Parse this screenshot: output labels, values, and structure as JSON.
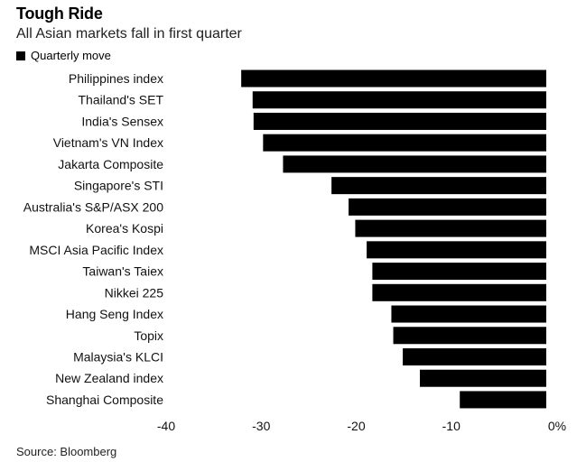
{
  "chart_data": {
    "type": "bar",
    "orientation": "horizontal",
    "title": "Tough Ride",
    "subtitle": "All Asian markets fall in first quarter",
    "legend": "Quarterly move",
    "source": "Source: Bloomberg",
    "categories": [
      "Philippines index",
      "Thailand's SET",
      "India's Sensex",
      "Vietnam's VN Index",
      "Jakarta Composite",
      "Singapore's STI",
      "Australia's S&P/ASX 200",
      "Korea's Kospi",
      "MSCI Asia Pacific Index",
      "Taiwan's Taiex",
      "Nikkei 225",
      "Hang Seng Index",
      "Topix",
      "Malaysia's KLCI",
      "New Zealand index",
      "Shanghai Composite"
    ],
    "values": [
      -32.1,
      -30.9,
      -30.8,
      -29.8,
      -27.7,
      -22.6,
      -20.8,
      -20.1,
      -18.9,
      -18.3,
      -18.3,
      -16.3,
      -16.1,
      -15.1,
      -13.3,
      -9.1
    ],
    "xlim": [
      -40,
      0
    ],
    "xticks": [
      {
        "value": -40,
        "label": "-40"
      },
      {
        "value": -30,
        "label": "-30"
      },
      {
        "value": -20,
        "label": "-20"
      },
      {
        "value": -10,
        "label": "-10"
      },
      {
        "value": 0,
        "label": "0%"
      }
    ],
    "bar_color": "#000000",
    "grid": false
  }
}
